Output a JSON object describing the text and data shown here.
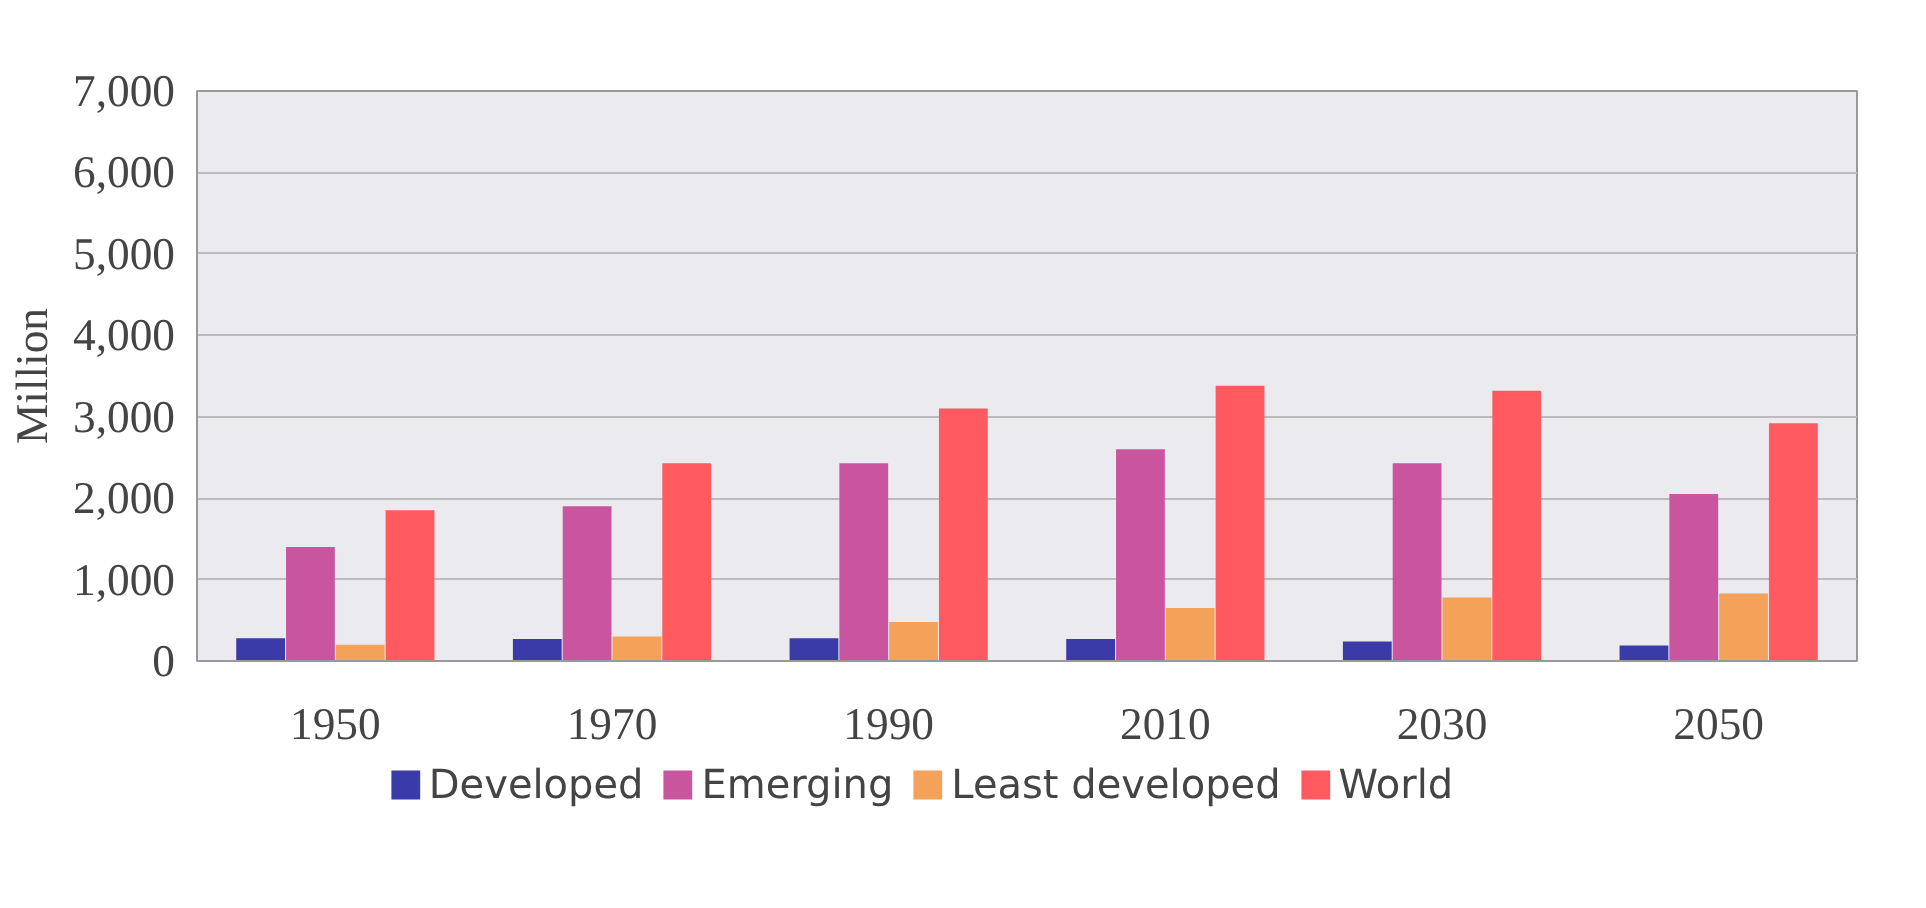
{
  "chart_data": {
    "type": "bar",
    "ylabel": "Million",
    "categories": [
      "1950",
      "1970",
      "1990",
      "2010",
      "2030",
      "2050"
    ],
    "series": [
      {
        "name": "Developed",
        "color": "#3a3aa8",
        "values": [
          280,
          270,
          280,
          270,
          240,
          190
        ]
      },
      {
        "name": "Emerging",
        "color": "#c8559e",
        "values": [
          1400,
          1900,
          2430,
          2600,
          2430,
          2050
        ]
      },
      {
        "name": "Least developed",
        "color": "#f4a25a",
        "values": [
          200,
          300,
          480,
          650,
          780,
          830
        ]
      },
      {
        "name": "World",
        "color": "#ff5a60",
        "values": [
          1850,
          2430,
          3100,
          3380,
          3320,
          2920
        ]
      }
    ],
    "ylim": [
      0,
      7000
    ],
    "yticks": [
      {
        "value": 0,
        "label": "0"
      },
      {
        "value": 1000,
        "label": "1,000"
      },
      {
        "value": 2000,
        "label": "2,000"
      },
      {
        "value": 3000,
        "label": "3,000"
      },
      {
        "value": 4000,
        "label": "4,000"
      },
      {
        "value": 5000,
        "label": "5,000"
      },
      {
        "value": 6000,
        "label": "6,000"
      },
      {
        "value": 7000,
        "label": "7,000"
      }
    ],
    "grid": "y",
    "legend": "bottom"
  }
}
